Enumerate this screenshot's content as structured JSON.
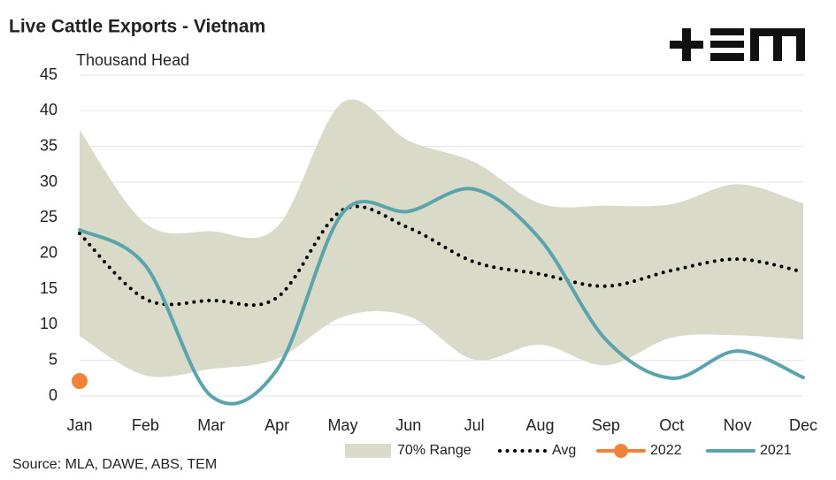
{
  "chart_data": {
    "type": "line",
    "title": "Live Cattle Exports - Vietnam",
    "subtitle": "Thousand Head",
    "source": "Source: MLA, DAWE, ABS, TEM",
    "categories": [
      "Jan",
      "Feb",
      "Mar",
      "Apr",
      "May",
      "Jun",
      "Jul",
      "Aug",
      "Sep",
      "Oct",
      "Nov",
      "Dec"
    ],
    "ylim": [
      0,
      45
    ],
    "yticks": [
      0,
      5,
      10,
      15,
      20,
      25,
      30,
      35,
      40,
      45
    ],
    "grid": true,
    "legend": "bottom",
    "range": {
      "name": "70% Range",
      "color": "#d9dbc8",
      "upper": [
        37.3,
        24.2,
        23.1,
        23.7,
        41.2,
        35.8,
        32.8,
        27.0,
        26.7,
        26.9,
        29.7,
        27.0
      ],
      "lower": [
        8.4,
        2.9,
        3.8,
        5.2,
        11.1,
        11.2,
        5.1,
        7.2,
        4.3,
        8.2,
        8.5,
        7.9
      ]
    },
    "series": [
      {
        "name": "Avg",
        "color": "#000000",
        "style": "dotted",
        "values": [
          22.8,
          13.6,
          13.4,
          13.8,
          26.1,
          23.6,
          18.8,
          17.1,
          15.4,
          17.6,
          19.2,
          17.4
        ]
      },
      {
        "name": "2022",
        "color": "#f08338",
        "style": "marker",
        "values": [
          2.1,
          null,
          null,
          null,
          null,
          null,
          null,
          null,
          null,
          null,
          null,
          null
        ]
      },
      {
        "name": "2021",
        "color": "#5ba4ae",
        "style": "solid",
        "values": [
          23.3,
          18.3,
          0,
          3.7,
          25.7,
          25.9,
          29.0,
          22.0,
          7.9,
          2.5,
          6.3,
          2.6
        ]
      }
    ]
  }
}
